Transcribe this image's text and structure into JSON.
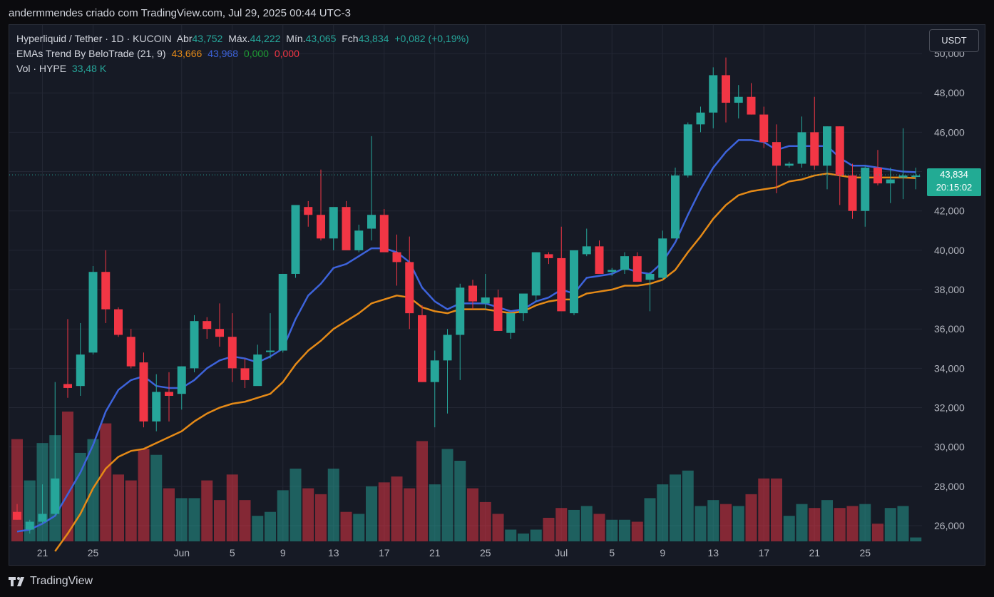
{
  "header": {
    "caption": "andermmendes criado com TradingView.com, Jul 29, 2025 00:44 UTC-3"
  },
  "legend": {
    "symbol": "Hyperliquid / Tether · 1D · KUCOIN",
    "open_label": "Abr",
    "open": "43,752",
    "high_label": "Máx.",
    "high": "44,222",
    "low_label": "Mín.",
    "low": "43,065",
    "close_label": "Fch",
    "close": "43,834",
    "change": "+0,082 (+0,19%)",
    "ema_title": "EMAs Trend By BeloTrade (21, 9)",
    "ema_v1": "43,666",
    "ema_v2": "43,968",
    "ema_v3": "0,000",
    "ema_v4": "0,000",
    "vol_title": "Vol · HYPE",
    "vol_value": "33,48 K"
  },
  "currency_button": "USDT",
  "price_tag": {
    "price": "43,834",
    "countdown": "20:15:02"
  },
  "footer": {
    "brand": "TradingView"
  },
  "colors": {
    "up": "#26a69a",
    "down": "#f23645",
    "ema_fast": "#3d63db",
    "ema_slow": "#e58a17",
    "background": "#161a25",
    "grid": "#232734"
  },
  "chart_data": {
    "type": "candlestick",
    "y_axis_ticks": [
      "26,000",
      "28,000",
      "30,000",
      "32,000",
      "34,000",
      "36,000",
      "38,000",
      "40,000",
      "42,000",
      "44,000",
      "46,000",
      "48,000",
      "50,000"
    ],
    "ylim": [
      25200,
      50500
    ],
    "x_axis_labels": [
      {
        "label": "21",
        "index": 2
      },
      {
        "label": "25",
        "index": 6
      },
      {
        "label": "Jun",
        "index": 13
      },
      {
        "label": "5",
        "index": 17
      },
      {
        "label": "9",
        "index": 21
      },
      {
        "label": "13",
        "index": 25
      },
      {
        "label": "17",
        "index": 29
      },
      {
        "label": "21",
        "index": 33
      },
      {
        "label": "25",
        "index": 37
      },
      {
        "label": "Jul",
        "index": 43
      },
      {
        "label": "5",
        "index": 47
      },
      {
        "label": "9",
        "index": 51
      },
      {
        "label": "13",
        "index": 55
      },
      {
        "label": "17",
        "index": 59
      },
      {
        "label": "21",
        "index": 63
      },
      {
        "label": "25",
        "index": 67
      }
    ],
    "candles": [
      [
        26.7,
        27.1,
        26.3,
        26.3
      ],
      [
        25.8,
        26.3,
        25.6,
        26.2
      ],
      [
        26.2,
        28.1,
        26.1,
        26.6
      ],
      [
        26.6,
        33.3,
        26.5,
        28.4
      ],
      [
        33.2,
        36.5,
        32.5,
        33.0
      ],
      [
        33.1,
        36.3,
        32.6,
        34.7
      ],
      [
        34.8,
        39.2,
        34.7,
        38.9
      ],
      [
        38.9,
        40.0,
        36.3,
        37.0
      ],
      [
        37.0,
        37.1,
        35.6,
        35.7
      ],
      [
        35.6,
        36.0,
        34.0,
        34.1
      ],
      [
        34.3,
        34.8,
        31.0,
        31.3
      ],
      [
        31.3,
        33.7,
        30.8,
        32.8
      ],
      [
        32.8,
        33.8,
        31.3,
        32.6
      ],
      [
        32.7,
        34.1,
        31.9,
        34.1
      ],
      [
        34.0,
        36.7,
        33.8,
        36.4
      ],
      [
        36.4,
        36.6,
        35.5,
        36.0
      ],
      [
        36.0,
        37.3,
        35.1,
        35.6
      ],
      [
        35.6,
        36.8,
        33.3,
        34.0
      ],
      [
        34.0,
        34.5,
        33.0,
        33.4
      ],
      [
        33.1,
        35.2,
        33.2,
        34.7
      ],
      [
        34.9,
        36.8,
        34.5,
        34.9
      ],
      [
        34.9,
        38.1,
        34.8,
        38.8
      ],
      [
        38.8,
        42.2,
        38.6,
        42.3
      ],
      [
        42.2,
        42.5,
        41.2,
        41.8
      ],
      [
        41.8,
        44.1,
        40.5,
        40.6
      ],
      [
        40.6,
        41.6,
        40.0,
        42.2
      ],
      [
        42.2,
        42.5,
        40.1,
        40.0
      ],
      [
        40.0,
        41.3,
        39.9,
        41.0
      ],
      [
        41.1,
        45.8,
        40.5,
        41.8
      ],
      [
        41.8,
        42.1,
        40.0,
        39.9
      ],
      [
        39.9,
        40.8,
        38.2,
        39.4
      ],
      [
        39.4,
        40.7,
        36.0,
        36.8
      ],
      [
        36.7,
        37.2,
        33.3,
        33.3
      ],
      [
        33.3,
        34.9,
        31.0,
        34.4
      ],
      [
        34.4,
        36.0,
        31.7,
        35.7
      ],
      [
        35.7,
        38.3,
        33.4,
        38.1
      ],
      [
        38.2,
        38.5,
        37.0,
        37.4
      ],
      [
        37.3,
        38.8,
        37.0,
        37.6
      ],
      [
        37.6,
        38.0,
        35.9,
        35.9
      ],
      [
        35.8,
        36.3,
        35.5,
        36.8
      ],
      [
        36.8,
        37.4,
        36.4,
        37.8
      ],
      [
        37.7,
        39.9,
        37.4,
        39.9
      ],
      [
        39.8,
        39.9,
        39.3,
        39.6
      ],
      [
        39.6,
        41.2,
        38.6,
        36.9
      ],
      [
        36.8,
        39.8,
        36.7,
        40.0
      ],
      [
        39.8,
        41.1,
        39.7,
        40.2
      ],
      [
        40.2,
        40.5,
        38.9,
        38.8
      ],
      [
        38.9,
        39.1,
        38.7,
        39.0
      ],
      [
        39.0,
        39.9,
        38.8,
        39.7
      ],
      [
        39.7,
        39.9,
        38.4,
        38.4
      ],
      [
        38.5,
        38.9,
        36.9,
        38.8
      ],
      [
        38.6,
        41.0,
        38.5,
        40.6
      ],
      [
        40.6,
        44.2,
        40.6,
        43.8
      ],
      [
        43.8,
        46.5,
        43.7,
        46.4
      ],
      [
        46.4,
        47.3,
        46.0,
        47.0
      ],
      [
        47.0,
        49.3,
        46.2,
        48.9
      ],
      [
        48.9,
        49.8,
        46.5,
        47.5
      ],
      [
        47.5,
        48.4,
        46.7,
        47.8
      ],
      [
        47.8,
        48.5,
        46.9,
        46.9
      ],
      [
        46.9,
        47.3,
        45.2,
        45.5
      ],
      [
        45.5,
        46.4,
        42.9,
        44.3
      ],
      [
        44.3,
        44.5,
        44.2,
        44.4
      ],
      [
        44.4,
        46.8,
        44.2,
        46.0
      ],
      [
        46.0,
        47.8,
        44.1,
        44.3
      ],
      [
        44.3,
        46.3,
        43.1,
        46.3
      ],
      [
        46.3,
        46.3,
        42.3,
        43.8
      ],
      [
        43.8,
        44.4,
        41.6,
        42.0
      ],
      [
        42.0,
        44.3,
        41.2,
        44.2
      ],
      [
        44.2,
        45.1,
        43.3,
        43.4
      ],
      [
        43.4,
        44.2,
        42.4,
        43.6
      ],
      [
        43.7,
        46.2,
        42.6,
        43.8
      ],
      [
        43.8,
        44.2,
        43.1,
        43.8
      ]
    ],
    "volumes": [
      [
        30.4,
        "d"
      ],
      [
        28.3,
        "u"
      ],
      [
        30.2,
        "u"
      ],
      [
        30.6,
        "u"
      ],
      [
        31.8,
        "d"
      ],
      [
        29.7,
        "u"
      ],
      [
        30.4,
        "u"
      ],
      [
        31.2,
        "d"
      ],
      [
        28.6,
        "d"
      ],
      [
        28.3,
        "d"
      ],
      [
        29.9,
        "d"
      ],
      [
        29.6,
        "u"
      ],
      [
        27.9,
        "d"
      ],
      [
        27.4,
        "u"
      ],
      [
        27.4,
        "u"
      ],
      [
        28.3,
        "d"
      ],
      [
        27.3,
        "d"
      ],
      [
        28.6,
        "d"
      ],
      [
        27.3,
        "d"
      ],
      [
        26.5,
        "u"
      ],
      [
        26.7,
        "u"
      ],
      [
        27.8,
        "u"
      ],
      [
        28.9,
        "u"
      ],
      [
        27.9,
        "d"
      ],
      [
        27.6,
        "d"
      ],
      [
        28.9,
        "u"
      ],
      [
        26.7,
        "d"
      ],
      [
        26.6,
        "u"
      ],
      [
        28.0,
        "u"
      ],
      [
        28.2,
        "d"
      ],
      [
        28.5,
        "d"
      ],
      [
        27.9,
        "d"
      ],
      [
        30.3,
        "d"
      ],
      [
        28.1,
        "u"
      ],
      [
        29.9,
        "u"
      ],
      [
        29.3,
        "u"
      ],
      [
        27.9,
        "d"
      ],
      [
        27.2,
        "d"
      ],
      [
        26.6,
        "d"
      ],
      [
        25.8,
        "u"
      ],
      [
        25.6,
        "u"
      ],
      [
        25.8,
        "u"
      ],
      [
        26.4,
        "d"
      ],
      [
        26.9,
        "d"
      ],
      [
        26.8,
        "u"
      ],
      [
        27.0,
        "u"
      ],
      [
        26.6,
        "d"
      ],
      [
        26.3,
        "u"
      ],
      [
        26.3,
        "u"
      ],
      [
        26.2,
        "d"
      ],
      [
        27.4,
        "u"
      ],
      [
        28.1,
        "u"
      ],
      [
        28.6,
        "u"
      ],
      [
        28.8,
        "u"
      ],
      [
        27.0,
        "u"
      ],
      [
        27.3,
        "u"
      ],
      [
        27.1,
        "d"
      ],
      [
        27.0,
        "u"
      ],
      [
        27.6,
        "d"
      ],
      [
        28.4,
        "d"
      ],
      [
        28.4,
        "d"
      ],
      [
        26.5,
        "u"
      ],
      [
        27.1,
        "u"
      ],
      [
        26.9,
        "d"
      ],
      [
        27.3,
        "u"
      ],
      [
        26.9,
        "d"
      ],
      [
        27.0,
        "d"
      ],
      [
        27.1,
        "u"
      ],
      [
        26.1,
        "d"
      ],
      [
        26.9,
        "u"
      ],
      [
        27.0,
        "u"
      ],
      [
        25.4,
        "u"
      ]
    ],
    "ema_fast": [
      [
        0,
        25.7
      ],
      [
        1,
        25.8
      ],
      [
        2,
        26.1
      ],
      [
        3,
        26.5
      ],
      [
        4,
        27.6
      ],
      [
        5,
        28.7
      ],
      [
        6,
        30.1
      ],
      [
        7,
        31.8
      ],
      [
        8,
        32.9
      ],
      [
        9,
        33.4
      ],
      [
        10,
        33.6
      ],
      [
        11,
        33.1
      ],
      [
        12,
        33.0
      ],
      [
        13,
        33.0
      ],
      [
        14,
        33.4
      ],
      [
        15,
        34.0
      ],
      [
        16,
        34.4
      ],
      [
        17,
        34.6
      ],
      [
        18,
        34.5
      ],
      [
        19,
        34.3
      ],
      [
        20,
        34.6
      ],
      [
        21,
        35.0
      ],
      [
        22,
        36.5
      ],
      [
        23,
        37.7
      ],
      [
        24,
        38.3
      ],
      [
        25,
        39.1
      ],
      [
        26,
        39.3
      ],
      [
        27,
        39.7
      ],
      [
        28,
        40.1
      ],
      [
        29,
        40.1
      ],
      [
        30,
        39.9
      ],
      [
        31,
        39.4
      ],
      [
        32,
        38.1
      ],
      [
        33,
        37.4
      ],
      [
        34,
        37.0
      ],
      [
        35,
        37.3
      ],
      [
        36,
        37.3
      ],
      [
        37,
        37.3
      ],
      [
        38,
        37.1
      ],
      [
        39,
        36.9
      ],
      [
        40,
        37.0
      ],
      [
        41,
        37.4
      ],
      [
        42,
        37.6
      ],
      [
        43,
        38.0
      ],
      [
        44,
        37.8
      ],
      [
        45,
        38.6
      ],
      [
        46,
        38.7
      ],
      [
        47,
        38.8
      ],
      [
        48,
        39.1
      ],
      [
        49,
        38.9
      ],
      [
        50,
        38.8
      ],
      [
        51,
        39.4
      ],
      [
        52,
        40.4
      ],
      [
        53,
        41.8
      ],
      [
        54,
        43.1
      ],
      [
        55,
        44.2
      ],
      [
        56,
        45.0
      ],
      [
        57,
        45.6
      ],
      [
        58,
        45.6
      ],
      [
        59,
        45.5
      ],
      [
        60,
        45.1
      ],
      [
        61,
        45.3
      ],
      [
        62,
        45.3
      ],
      [
        63,
        45.3
      ],
      [
        64,
        45.3
      ],
      [
        65,
        44.7
      ],
      [
        66,
        44.3
      ],
      [
        67,
        44.3
      ],
      [
        68,
        44.2
      ],
      [
        69,
        44.1
      ],
      [
        70,
        44.0
      ],
      [
        71,
        43.97
      ]
    ],
    "ema_slow": [
      [
        3,
        24.7
      ],
      [
        4,
        25.6
      ],
      [
        5,
        26.6
      ],
      [
        6,
        27.9
      ],
      [
        7,
        28.9
      ],
      [
        8,
        29.5
      ],
      [
        9,
        29.8
      ],
      [
        10,
        29.9
      ],
      [
        11,
        30.2
      ],
      [
        12,
        30.5
      ],
      [
        13,
        30.8
      ],
      [
        14,
        31.3
      ],
      [
        15,
        31.7
      ],
      [
        16,
        32.0
      ],
      [
        17,
        32.2
      ],
      [
        18,
        32.3
      ],
      [
        19,
        32.5
      ],
      [
        20,
        32.7
      ],
      [
        21,
        33.3
      ],
      [
        22,
        34.2
      ],
      [
        23,
        34.9
      ],
      [
        24,
        35.4
      ],
      [
        25,
        36.0
      ],
      [
        26,
        36.4
      ],
      [
        27,
        36.8
      ],
      [
        28,
        37.3
      ],
      [
        29,
        37.5
      ],
      [
        30,
        37.7
      ],
      [
        31,
        37.6
      ],
      [
        32,
        37.1
      ],
      [
        33,
        36.9
      ],
      [
        34,
        36.8
      ],
      [
        35,
        37.0
      ],
      [
        36,
        37.0
      ],
      [
        37,
        37.0
      ],
      [
        38,
        36.9
      ],
      [
        39,
        36.8
      ],
      [
        40,
        36.9
      ],
      [
        41,
        37.2
      ],
      [
        42,
        37.4
      ],
      [
        43,
        37.5
      ],
      [
        44,
        37.5
      ],
      [
        45,
        37.8
      ],
      [
        46,
        37.9
      ],
      [
        47,
        38.0
      ],
      [
        48,
        38.2
      ],
      [
        49,
        38.2
      ],
      [
        50,
        38.3
      ],
      [
        51,
        38.5
      ],
      [
        52,
        39.0
      ],
      [
        53,
        39.9
      ],
      [
        54,
        40.7
      ],
      [
        55,
        41.6
      ],
      [
        56,
        42.3
      ],
      [
        57,
        42.8
      ],
      [
        58,
        43.0
      ],
      [
        59,
        43.1
      ],
      [
        60,
        43.2
      ],
      [
        61,
        43.5
      ],
      [
        62,
        43.6
      ],
      [
        63,
        43.8
      ],
      [
        64,
        43.9
      ],
      [
        65,
        43.8
      ],
      [
        66,
        43.7
      ],
      [
        67,
        43.7
      ],
      [
        68,
        43.7
      ],
      [
        69,
        43.7
      ],
      [
        70,
        43.7
      ],
      [
        71,
        43.67
      ]
    ]
  }
}
